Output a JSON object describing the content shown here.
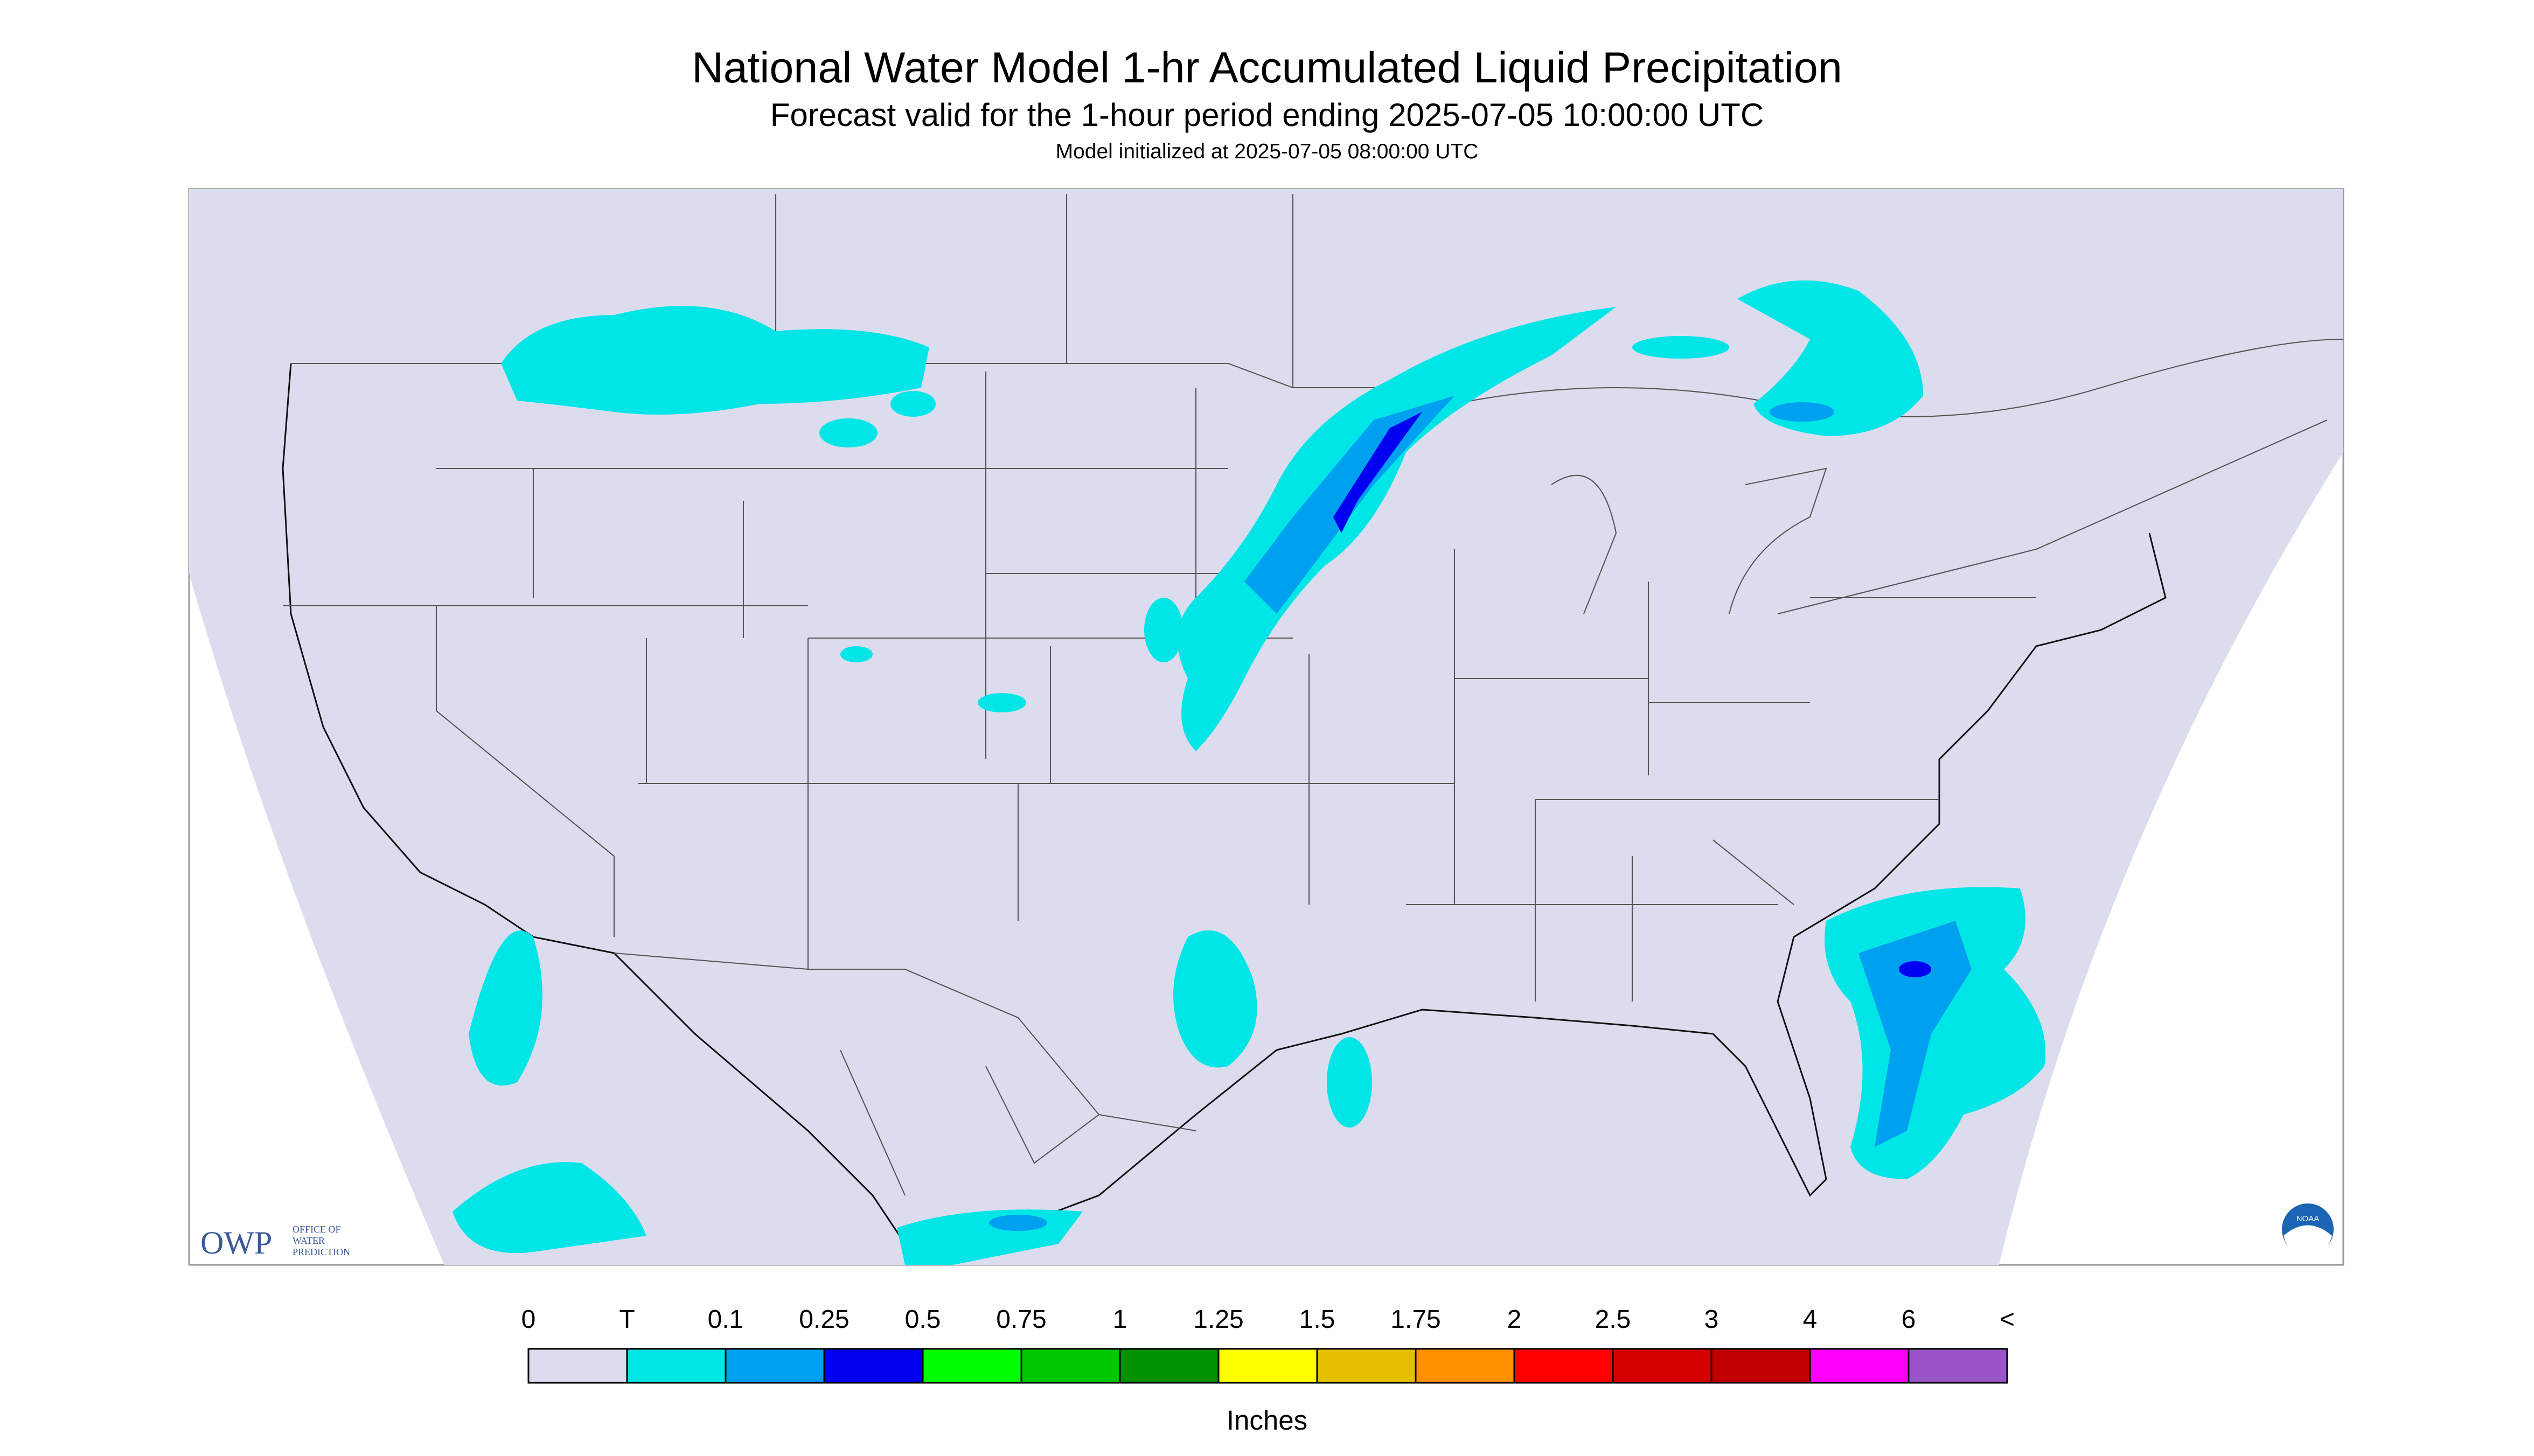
{
  "header": {
    "title": "National Water Model 1-hr Accumulated Liquid Precipitation",
    "subtitle": "Forecast valid for the 1-hour period ending 2025-07-05 10:00:00 UTC",
    "initialized": "Model initialized at 2025-07-05 08:00:00 UTC"
  },
  "logo": {
    "name": "OWP",
    "lines": [
      "OFFICE OF",
      "WATER",
      "PREDICTION"
    ],
    "badge": "NOAA"
  },
  "legend": {
    "labels": [
      "0",
      "T",
      "0.1",
      "0.25",
      "0.5",
      "0.75",
      "1",
      "1.25",
      "1.5",
      "1.75",
      "2",
      "2.5",
      "3",
      "4",
      "6",
      "<"
    ],
    "colors": [
      "#dcdcef",
      "#00e5e5",
      "#00a0f0",
      "#0000f0",
      "#00ff00",
      "#00c800",
      "#009000",
      "#ffff00",
      "#e6c000",
      "#ff9000",
      "#ff0000",
      "#d60000",
      "#c00000",
      "#ff00ff",
      "#9955c9"
    ],
    "unit": "Inches"
  }
}
